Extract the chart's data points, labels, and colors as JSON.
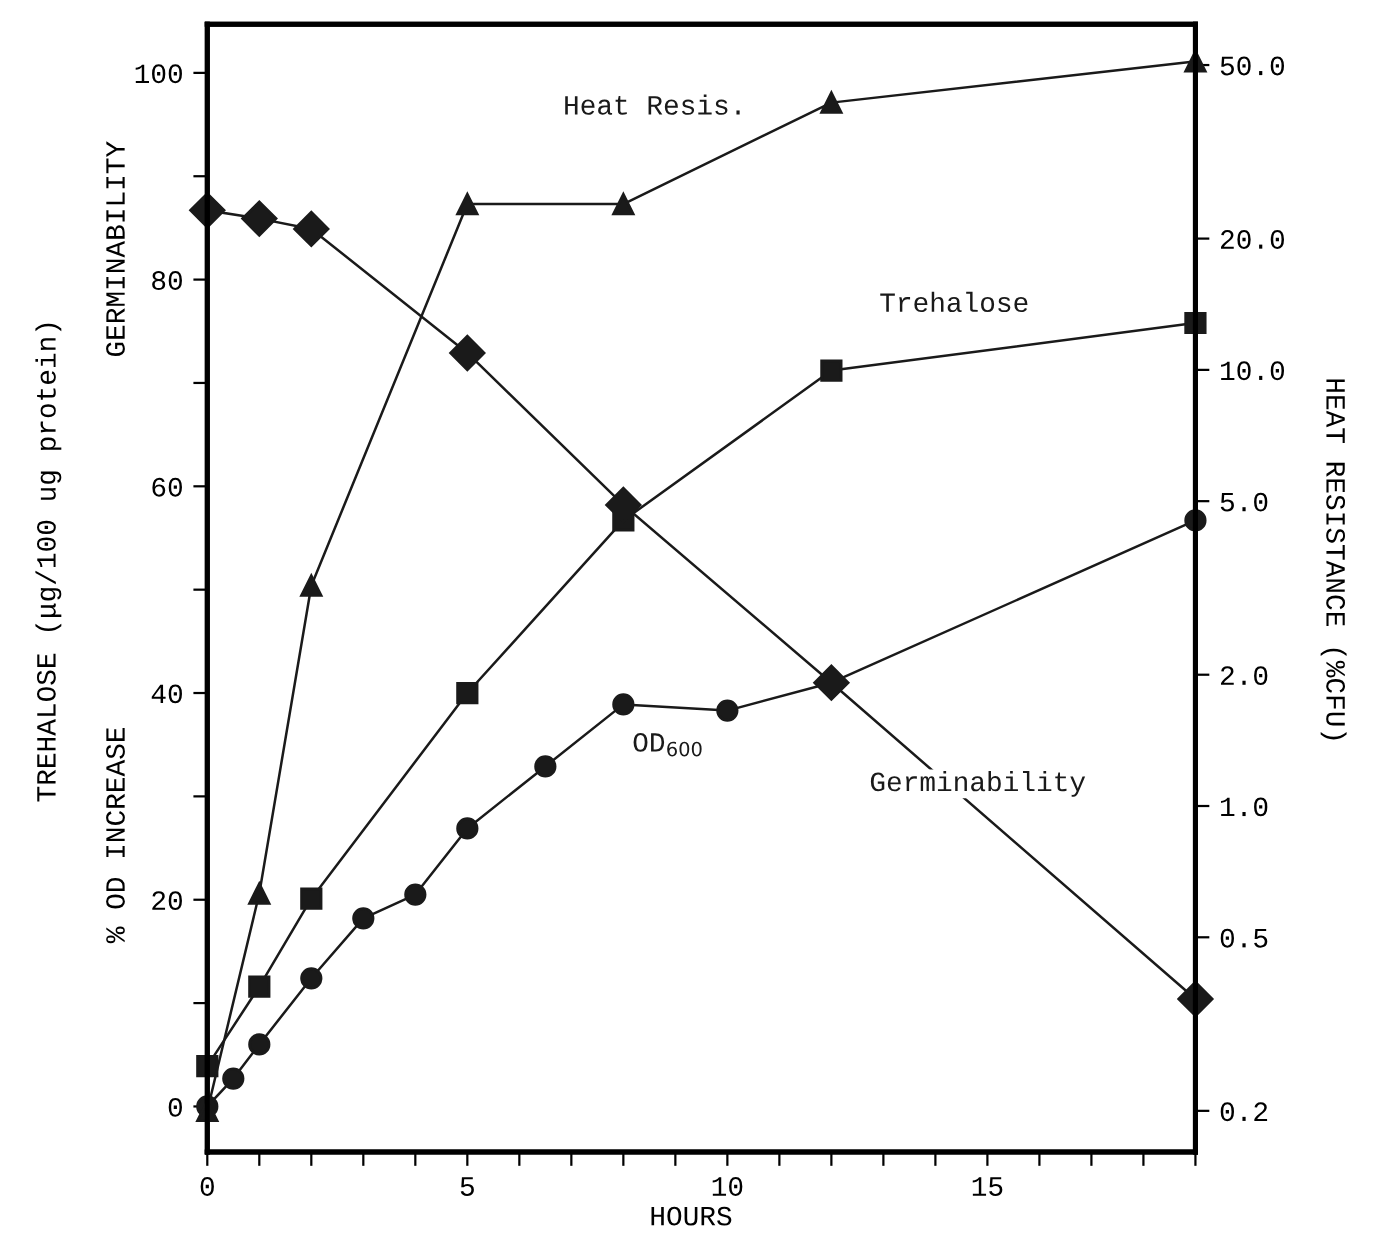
{
  "chart_data": {
    "type": "line",
    "xlabel": "HOURS",
    "ylabel": "TREHALOSE (μg/100 ug protein)",
    "y2label": "HEAT RESISTANCE (%CFU)",
    "x": [
      0,
      1,
      2,
      5,
      8,
      12,
      19
    ],
    "series": [
      {
        "name": "Heat Resis.",
        "color": "#1a1a1a",
        "marker": "triangle",
        "axis": "y2",
        "values": [
          0.2,
          0.63,
          3.2,
          24,
          24,
          41,
          51
        ]
      },
      {
        "name": "Trehalose",
        "color": "#1a1a1a",
        "marker": "square",
        "values": [
          3.9,
          11.6,
          20.1,
          40,
          56.7,
          71.2,
          75.8
        ]
      },
      {
        "name": "OD$_{600}$",
        "color": "#1a1a1a",
        "marker": "circle",
        "x": [
          0,
          0.5,
          1,
          2,
          3,
          4,
          5,
          6.5,
          8,
          10,
          12,
          19
        ],
        "values": [
          0,
          2.7,
          6.0,
          12.4,
          18.2,
          20.5,
          26.9,
          32.9,
          38.9,
          38.3,
          41.0,
          56.7
        ]
      },
      {
        "name": "Germinability",
        "color": "#1a1a1a",
        "marker": "diamond",
        "values": [
          86.7,
          85.9,
          84.9,
          72.9,
          58.2,
          41.0,
          10.4
        ]
      }
    ],
    "annotations": [
      "GERMINABILITY",
      "% OD INCREASE"
    ],
    "xlim": [
      0,
      19
    ],
    "xticks": [
      0,
      {
        "value": 1,
        "label": null
      },
      {
        "value": 2,
        "label": null
      },
      {
        "value": 3,
        "label": null
      },
      {
        "value": 4,
        "label": null
      },
      5,
      {
        "value": 6,
        "label": null
      },
      {
        "value": 7,
        "label": null
      },
      {
        "value": 8,
        "label": null
      },
      {
        "value": 9,
        "label": null
      },
      10,
      {
        "value": 11,
        "label": null
      },
      {
        "value": 12,
        "label": null
      },
      {
        "value": 13,
        "label": null
      },
      {
        "value": 14,
        "label": null
      },
      15,
      {
        "value": 16,
        "label": null
      },
      {
        "value": 17,
        "label": null
      },
      {
        "value": 18,
        "label": null
      },
      {
        "value": 19,
        "label": null
      }
    ],
    "ylim": [
      -4.4,
      104.7
    ],
    "yticks": [
      0,
      {
        "value": 10,
        "label": null
      },
      20,
      {
        "value": 30,
        "label": null
      },
      40,
      {
        "value": 50,
        "label": null
      },
      60,
      {
        "value": 70,
        "label": null
      },
      80,
      {
        "value": 90,
        "label": null
      },
      100
    ],
    "y2lim": [
      0.161,
      62
    ],
    "y2ticks": [
      0.2,
      0.5,
      {
        "value": 1,
        "label": "1.0"
      },
      {
        "value": 2,
        "label": "2.0"
      },
      {
        "value": 5,
        "label": "5.0"
      },
      {
        "value": 10,
        "label": "10.0"
      },
      {
        "value": 20,
        "label": "20.0"
      },
      {
        "value": 50,
        "label": "50.0"
      }
    ],
    "log": "y2",
    "grid": false,
    "legend": false,
    "line_style": "solid"
  }
}
